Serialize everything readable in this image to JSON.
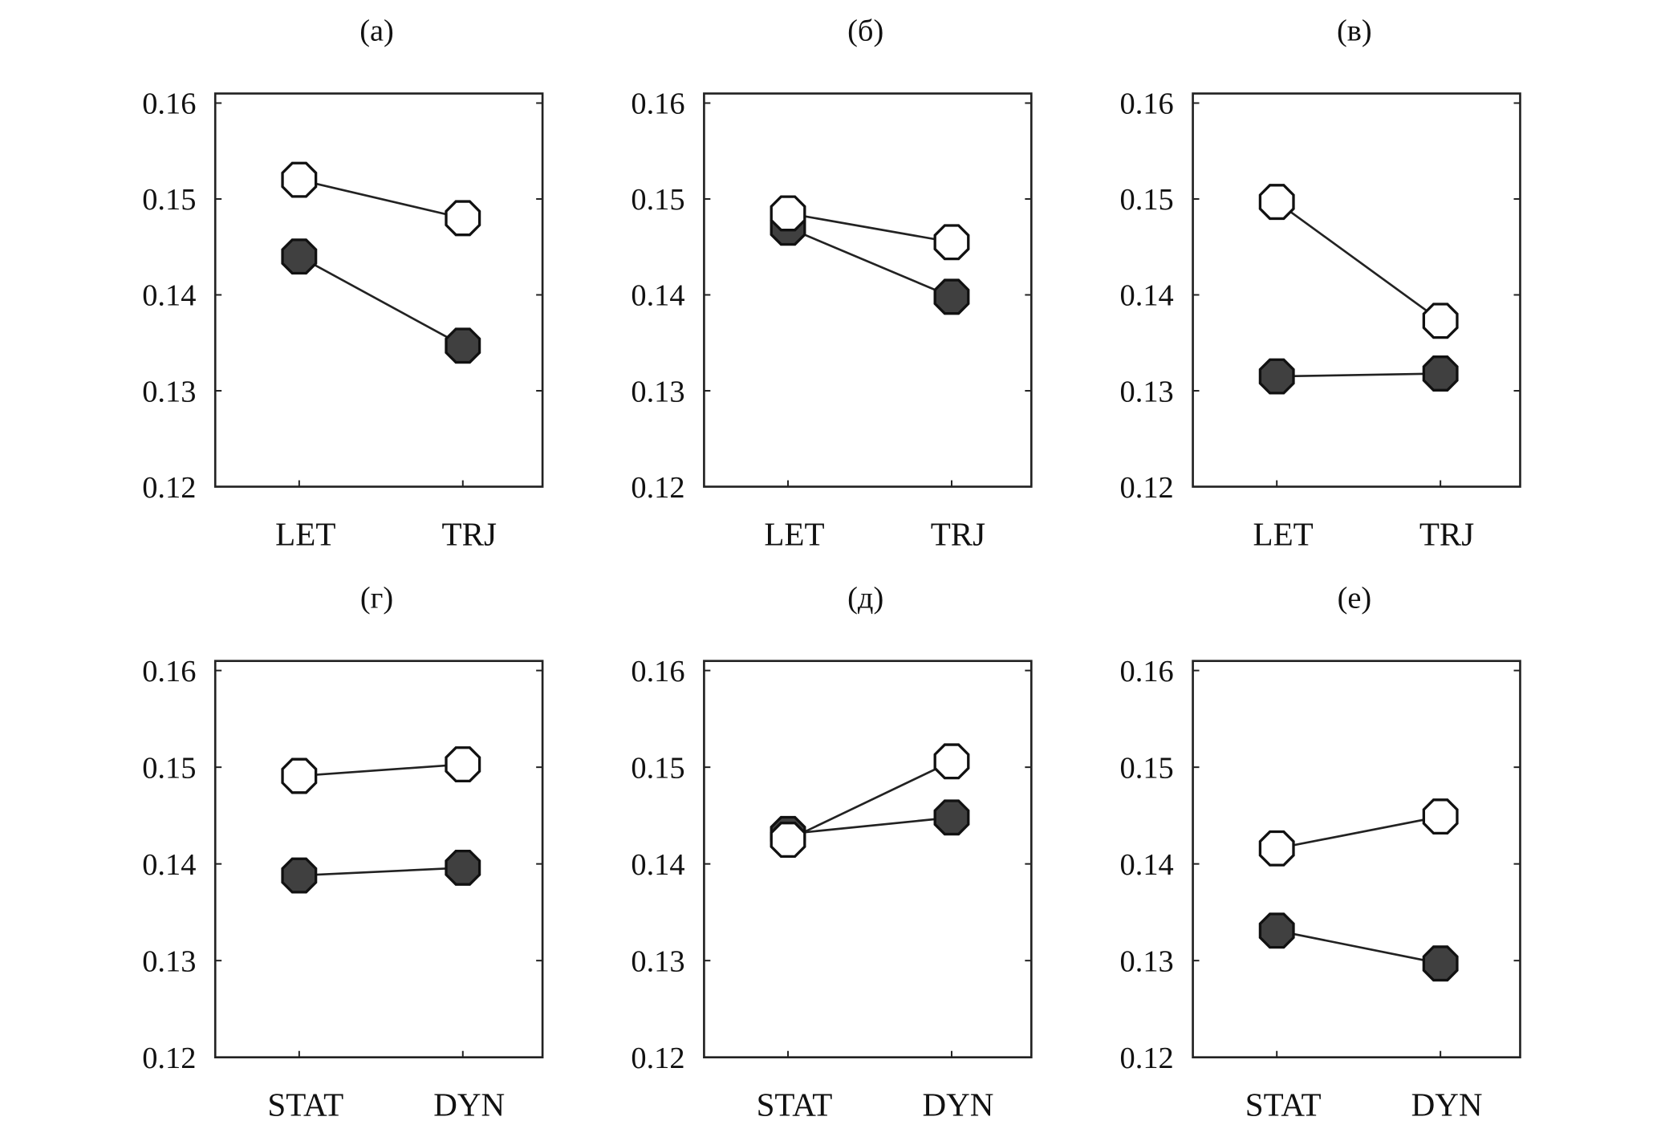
{
  "chart_data": [
    {
      "type": "line",
      "title": "(а)",
      "categories": [
        "LET",
        "TRJ"
      ],
      "ylim": [
        0.12,
        0.16
      ],
      "yticks": [
        "0.16",
        "0.15",
        "0.14",
        "0.13",
        "0.12"
      ],
      "series": [
        {
          "marker": "open",
          "values": [
            0.152,
            0.148
          ]
        },
        {
          "marker": "filled",
          "values": [
            0.144,
            0.1347
          ]
        }
      ]
    },
    {
      "type": "line",
      "title": "(б)",
      "categories": [
        "LET",
        "TRJ"
      ],
      "ylim": [
        0.12,
        0.16
      ],
      "yticks": [
        "0.16",
        "0.15",
        "0.14",
        "0.13",
        "0.12"
      ],
      "series": [
        {
          "marker": "open",
          "values": [
            0.1485,
            0.1455
          ]
        },
        {
          "marker": "filled",
          "values": [
            0.147,
            0.1398
          ]
        }
      ]
    },
    {
      "type": "line",
      "title": "(в)",
      "categories": [
        "LET",
        "TRJ"
      ],
      "ylim": [
        0.12,
        0.16
      ],
      "yticks": [
        "0.16",
        "0.15",
        "0.14",
        "0.13",
        "0.12"
      ],
      "series": [
        {
          "marker": "open",
          "values": [
            0.1497,
            0.1373
          ]
        },
        {
          "marker": "filled",
          "values": [
            0.1315,
            0.1318
          ]
        }
      ]
    },
    {
      "type": "line",
      "title": "(г)",
      "categories": [
        "STAT",
        "DYN"
      ],
      "ylim": [
        0.12,
        0.16
      ],
      "yticks": [
        "0.16",
        "0.15",
        "0.14",
        "0.13",
        "0.12"
      ],
      "series": [
        {
          "marker": "open",
          "values": [
            0.1491,
            0.1503
          ]
        },
        {
          "marker": "filled",
          "values": [
            0.1388,
            0.1396
          ]
        }
      ]
    },
    {
      "type": "line",
      "title": "(д)",
      "categories": [
        "STAT",
        "DYN"
      ],
      "ylim": [
        0.12,
        0.16
      ],
      "yticks": [
        "0.16",
        "0.15",
        "0.14",
        "0.13",
        "0.12"
      ],
      "series": [
        {
          "marker": "open",
          "values": [
            0.1425,
            0.1506
          ]
        },
        {
          "marker": "filled",
          "values": [
            0.1431,
            0.1448
          ]
        }
      ]
    },
    {
      "type": "line",
      "title": "(е)",
      "categories": [
        "STAT",
        "DYN"
      ],
      "ylim": [
        0.12,
        0.16
      ],
      "yticks": [
        "0.16",
        "0.15",
        "0.14",
        "0.13",
        "0.12"
      ],
      "series": [
        {
          "marker": "open",
          "values": [
            0.1416,
            0.1449
          ]
        },
        {
          "marker": "filled",
          "values": [
            0.1331,
            0.1297
          ]
        }
      ]
    }
  ],
  "colors": {
    "open_fill": "#ffffff",
    "filled_fill": "#404040",
    "line": "#222222"
  }
}
